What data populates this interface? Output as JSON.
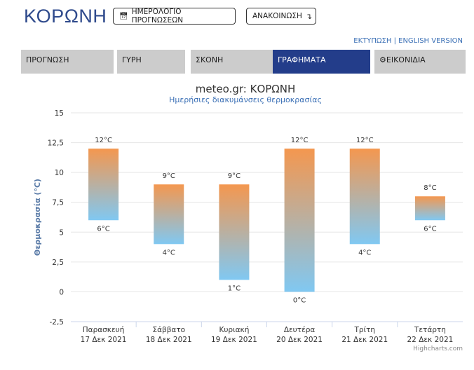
{
  "header": {
    "city": "ΚΟΡΩΝΗ",
    "calendar_button": "ΗΜΕΡΟΛΟΓΙΟ ΠΡΟΓΝΩΣΕΩΝ",
    "announcement_button": "ΑΝΑΚΟΙΝΩΣΗ",
    "print_link": "ΕΚΤΥΠΩΣΗ",
    "separator": " | ",
    "english_link": "ENGLISH VERSION"
  },
  "tabs": [
    {
      "label": "ΠΡΟΓΝΩΣΗ",
      "active": false
    },
    {
      "label": "ΓΥΡΗ",
      "active": false
    },
    {
      "label": "ΣΚΟΝΗ",
      "active": false
    },
    {
      "label": "ΓΡΑΦΗΜΑΤΑ",
      "active": true
    },
    {
      "label": "ΕΙΚΟΝΙΔΙΑ",
      "active": false,
      "icon": "gear-icon"
    }
  ],
  "colors": {
    "brand": "#2f4a8c",
    "active_tab": "#233d8a",
    "tab": "#cccccc",
    "bar_top": "#f4974f",
    "bar_bottom": "#80c8f2",
    "link": "#3a6fb5"
  },
  "chart_data": {
    "type": "bar",
    "subtype": "columnrange",
    "title": "meteo.gr: ΚΟΡΩΝΗ",
    "subtitle": "Ημερήσιες διακυμάνσεις θερμοκρασίας",
    "ylabel": "Θερμοκρασία (°C)",
    "ylim": [
      -2.5,
      15
    ],
    "yticks": [
      -2.5,
      0,
      2.5,
      5,
      7.5,
      10,
      12.5,
      15
    ],
    "ytick_labels": [
      "-2,5",
      "0",
      "2,5",
      "5",
      "7,5",
      "10",
      "12,5",
      "15"
    ],
    "grid": true,
    "categories": [
      [
        "Παρασκευή",
        "17 Δεκ 2021"
      ],
      [
        "Σάββατο",
        "18 Δεκ 2021"
      ],
      [
        "Κυριακή",
        "19 Δεκ 2021"
      ],
      [
        "Δευτέρα",
        "20 Δεκ 2021"
      ],
      [
        "Τρίτη",
        "21 Δεκ 2021"
      ],
      [
        "Τετάρτη",
        "22 Δεκ 2021"
      ]
    ],
    "min": [
      6,
      4,
      1,
      0,
      4,
      6
    ],
    "max": [
      12,
      9,
      9,
      12,
      12,
      8
    ],
    "unit": "°C",
    "credits": "Highcharts.com"
  }
}
